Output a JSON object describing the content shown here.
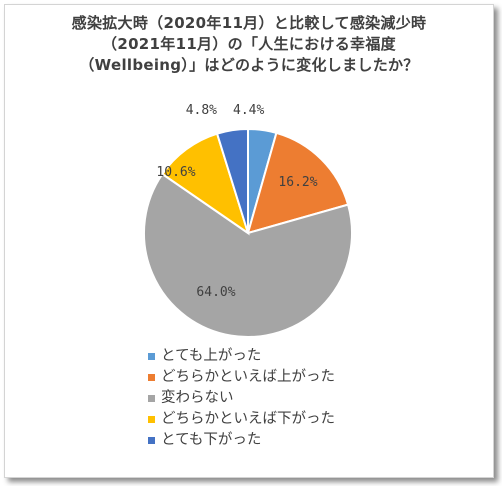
{
  "chart_data": {
    "type": "pie",
    "title_lines": [
      "感染拡大時（2020年11月）と比較して感染減少時",
      "（2021年11月）の「人生における幸福度",
      "（Wellbeing）」はどのように変化しましたか？"
    ],
    "categories": [
      "とても上がった",
      "どちらかといえば上がった",
      "変わらない",
      "どちらかといえば下がった",
      "とても下がった"
    ],
    "values": [
      4.4,
      16.2,
      64.0,
      10.6,
      4.8
    ],
    "data_labels": [
      "4.4%",
      "16.2%",
      "64.0%",
      "10.6%",
      "4.8%"
    ],
    "colors": [
      "#5b9bd5",
      "#ed7d31",
      "#a5a5a5",
      "#ffc000",
      "#4472c4"
    ],
    "legend_position": "bottom-left"
  }
}
